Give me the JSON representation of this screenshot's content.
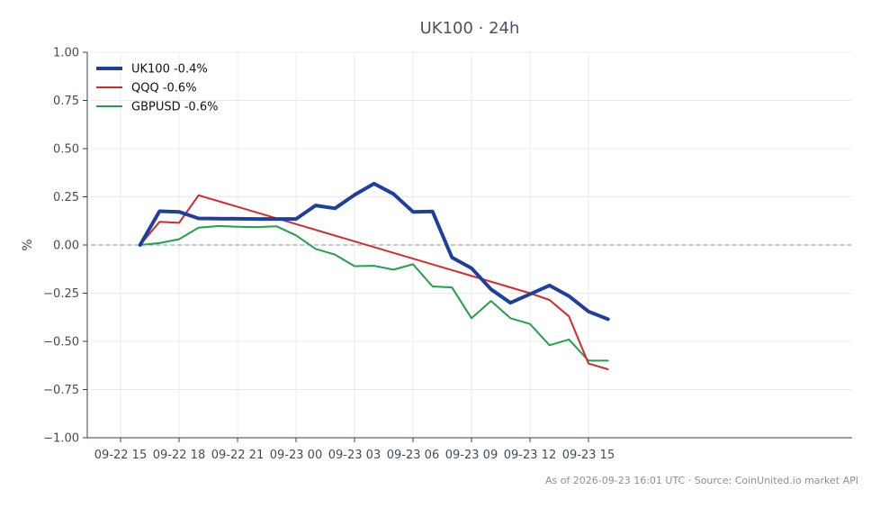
{
  "chart_data": {
    "type": "line",
    "title": "UK100 · 24h",
    "ylabel": "%",
    "xlabel": "",
    "ylim": [
      -1.0,
      1.0
    ],
    "xlim": [
      "09-22 15:00",
      "09-23 17:30"
    ],
    "yticks": [
      "1.00",
      "0.75",
      "0.50",
      "0.25",
      "0.00",
      "−0.25",
      "−0.50",
      "−0.75",
      "−1.00"
    ],
    "ytick_values": [
      1.0,
      0.75,
      0.5,
      0.25,
      0.0,
      -0.25,
      -0.5,
      -0.75,
      -1.0
    ],
    "xticks": [
      "09-22 15",
      "09-22 18",
      "09-22 21",
      "09-23 00",
      "09-23 03",
      "09-23 06",
      "09-23 09",
      "09-23 12",
      "09-23 15"
    ],
    "xtick_values": [
      "09-22 15:00",
      "09-22 18:00",
      "09-22 21:00",
      "09-23 00:00",
      "09-23 03:00",
      "09-23 06:00",
      "09-23 09:00",
      "09-23 12:00",
      "09-23 15:00"
    ],
    "grid": true,
    "baseline": 0,
    "legend_position": "top-left",
    "series": [
      {
        "name": "UK100 -0.4%",
        "color": "#1f3f9e",
        "x": [
          "09-22 16:00",
          "09-22 17:00",
          "09-22 18:00",
          "09-22 19:00",
          "09-22 20:00",
          "09-22 21:00",
          "09-22 22:00",
          "09-22 23:00",
          "09-23 00:00",
          "09-23 01:00",
          "09-23 02:00",
          "09-23 03:00",
          "09-23 04:00",
          "09-23 05:00",
          "09-23 06:00",
          "09-23 07:00",
          "09-23 08:00",
          "09-23 09:00",
          "09-23 10:00",
          "09-23 11:00",
          "09-23 12:00",
          "09-23 13:00",
          "09-23 14:00",
          "09-23 15:00",
          "09-23 16:00"
        ],
        "values": [
          0.0,
          0.175,
          0.172,
          0.138,
          0.137,
          0.136,
          0.135,
          0.135,
          0.135,
          0.205,
          0.19,
          0.26,
          0.318,
          0.265,
          0.172,
          0.174,
          -0.065,
          -0.12,
          -0.23,
          -0.3,
          -0.255,
          -0.21,
          -0.265,
          -0.345,
          -0.385
        ]
      },
      {
        "name": "QQQ -0.6%",
        "color": "#d62a2a",
        "x": [
          "09-22 16:00",
          "09-22 17:00",
          "09-22 18:00",
          "09-22 19:00",
          "09-23 12:00",
          "09-23 13:00",
          "09-23 14:00",
          "09-23 15:00",
          "09-23 16:00"
        ],
        "values": [
          0.0,
          0.12,
          0.115,
          0.258,
          -0.25,
          -0.285,
          -0.37,
          -0.615,
          -0.645
        ]
      },
      {
        "name": "GBPUSD -0.6%",
        "color": "#22a04b",
        "x": [
          "09-22 16:00",
          "09-22 17:00",
          "09-22 18:00",
          "09-22 19:00",
          "09-22 20:00",
          "09-22 21:00",
          "09-22 22:00",
          "09-22 23:00",
          "09-23 00:00",
          "09-23 01:00",
          "09-23 02:00",
          "09-23 03:00",
          "09-23 04:00",
          "09-23 05:00",
          "09-23 06:00",
          "09-23 07:00",
          "09-23 08:00",
          "09-23 09:00",
          "09-23 10:00",
          "09-23 11:00",
          "09-23 12:00",
          "09-23 13:00",
          "09-23 14:00",
          "09-23 15:00",
          "09-23 16:00"
        ],
        "values": [
          0.0,
          0.01,
          0.03,
          0.09,
          0.098,
          0.095,
          0.093,
          0.097,
          0.05,
          -0.02,
          -0.05,
          -0.11,
          -0.108,
          -0.128,
          -0.1,
          -0.215,
          -0.22,
          -0.38,
          -0.29,
          -0.38,
          -0.41,
          -0.52,
          -0.49,
          -0.6,
          -0.6
        ]
      }
    ]
  },
  "footer": "As of 2026-09-23 16:01 UTC · Source: CoinUnited.io market API"
}
